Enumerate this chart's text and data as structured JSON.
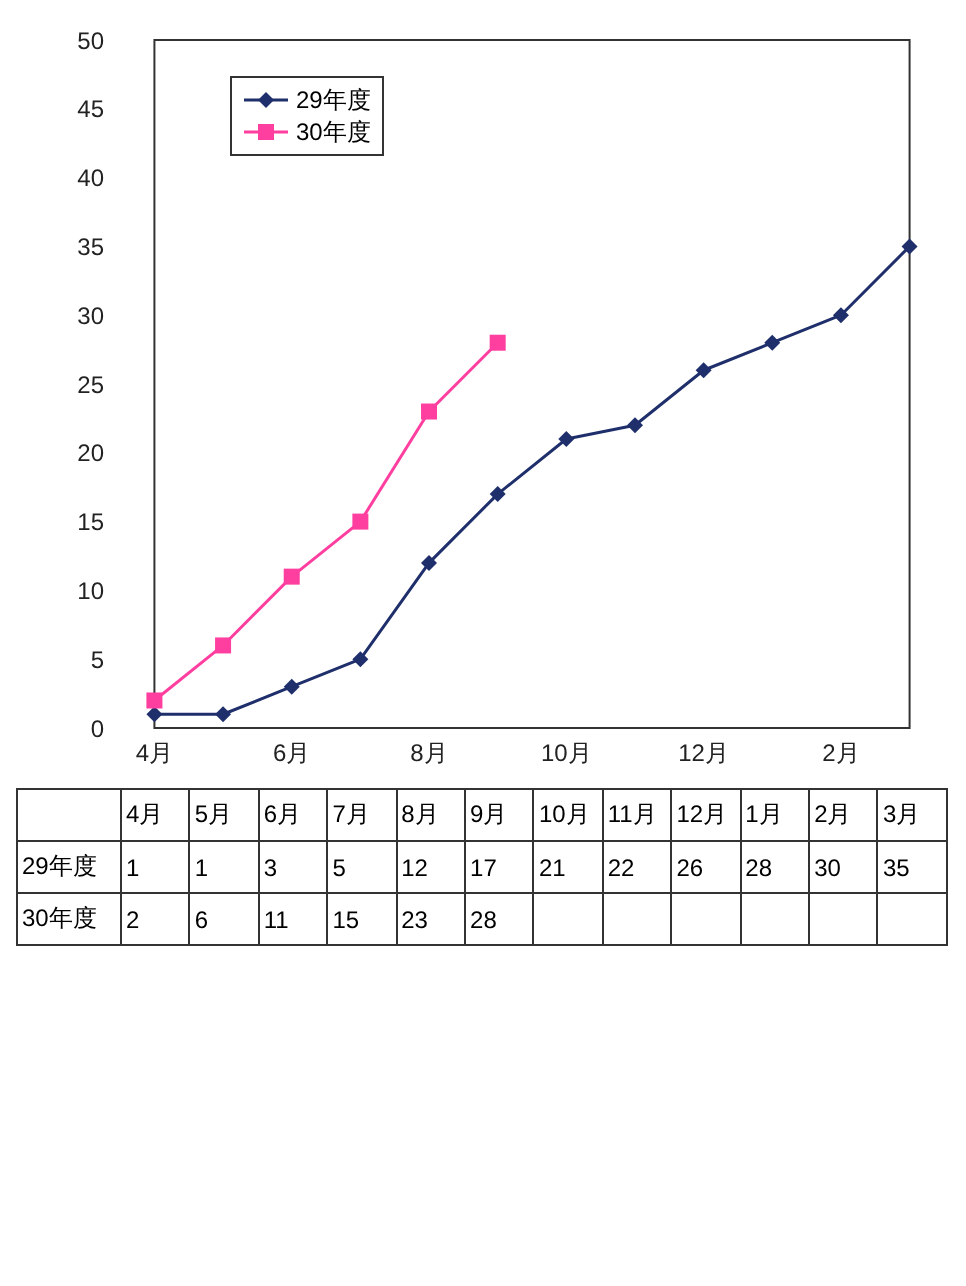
{
  "chart_data": {
    "type": "line",
    "categories": [
      "4月",
      "5月",
      "6月",
      "7月",
      "8月",
      "9月",
      "10月",
      "11月",
      "12月",
      "1月",
      "2月",
      "3月"
    ],
    "series": [
      {
        "name": "29年度",
        "color": "#1f2f6b",
        "marker": "diamond",
        "values": [
          1,
          1,
          3,
          5,
          12,
          17,
          21,
          22,
          26,
          28,
          30,
          35
        ]
      },
      {
        "name": "30年度",
        "color": "#ff3fa0",
        "marker": "square",
        "values": [
          2,
          6,
          11,
          15,
          23,
          28,
          null,
          null,
          null,
          null,
          null,
          null
        ]
      }
    ],
    "ylim": [
      0,
      50
    ],
    "yticks": [
      0,
      5,
      10,
      15,
      20,
      25,
      30,
      35,
      40,
      45,
      50
    ],
    "grid": false,
    "legend": "top left",
    "data_labels": true
  }
}
